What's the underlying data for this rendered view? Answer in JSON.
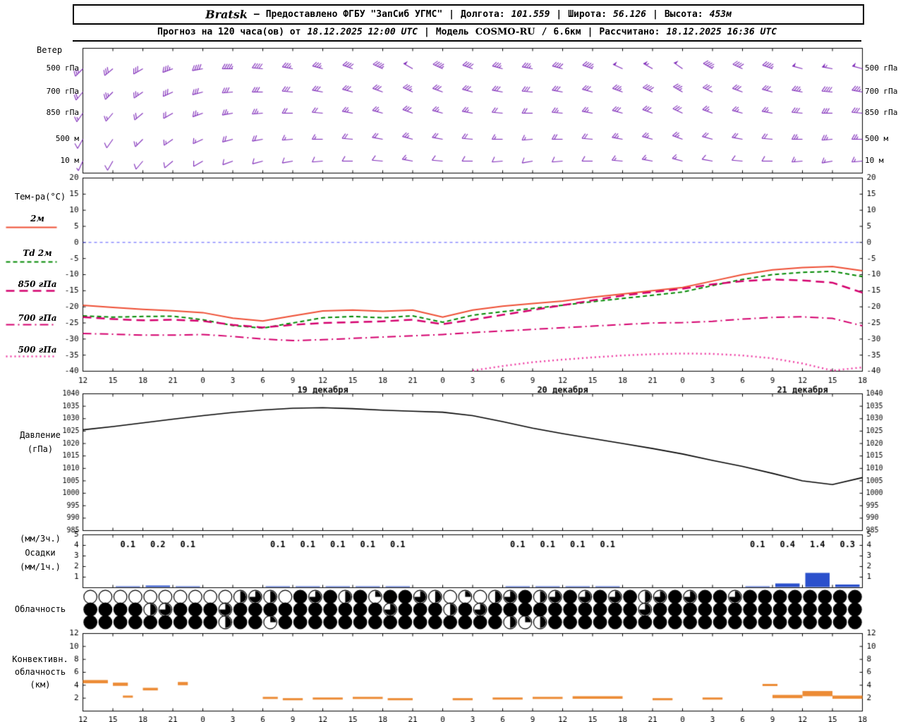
{
  "meta": {
    "sep": "|",
    "dash": "—",
    "slash": "/"
  },
  "header": {
    "station": "Bratsk",
    "provider": "Предоставлено ФГБУ \"ЗапСиб УГМС\"",
    "lon_label": "Долгота:",
    "lon": "101.559",
    "lat_label": "Широта:",
    "lat": "56.126",
    "alt_label": "Высота:",
    "alt": "453м",
    "forecast_label": "Прогноз на 120 часа(ов) от",
    "init_time": "18.12.2025 12:00 UTC",
    "model_label": "Модель",
    "model": "COSMO-RU",
    "model_res": "6.6км",
    "calc_label": "Рассчитано:",
    "calc_time": "18.12.2025 16:36 UTC"
  },
  "labels": {
    "wind_title": "Ветер",
    "wind_levels": [
      "500 гПа",
      "700 гПа",
      "850 гПа",
      "500 м",
      "10 м"
    ],
    "temp_title": "Тем-ра(°C)",
    "temp_legend": [
      "2м",
      "Td 2м",
      "850 гПа",
      "700 гПа",
      "500 гПа"
    ],
    "pressure_title": "Давление",
    "pressure_units": "(гПа)",
    "precip_rate3h": "(мм/3ч.)",
    "precip_title": "Осадки",
    "precip_rate1h": "(мм/1ч.)",
    "cloud_title": "Облачность",
    "conv_line1": "Конвективн.",
    "conv_line2": "облачность",
    "conv_units": "(км)"
  },
  "colors": {
    "wind_barb": "#7e2ab8",
    "temp_2m": "#ee4f35",
    "dewpoint": "#008800",
    "t850": "#d4006e",
    "t700": "#d4006e",
    "t500": "#ee3fa4",
    "pressure": "#000000",
    "precip": "#2b50cc",
    "convective": "#ec8b35",
    "zero_line": "#5050ff",
    "frame": "#000000"
  },
  "chart_data": {
    "type": "meteogram",
    "time": {
      "tick_hours": [
        "12",
        "15",
        "18",
        "21",
        "0",
        "3",
        "6",
        "9",
        "12",
        "15",
        "18",
        "21",
        "0",
        "3",
        "6",
        "9",
        "12",
        "15",
        "18",
        "21",
        "0",
        "3",
        "6",
        "9",
        "12",
        "15",
        "18"
      ],
      "date_labels": [
        {
          "text": "19 декабря",
          "tick": 8
        },
        {
          "text": "20 декабря",
          "tick": 16
        },
        {
          "text": "21 декабря",
          "tick": 24
        }
      ],
      "total_hours": 78
    },
    "wind": {
      "levels": [
        "500 гПа",
        "700 гПа",
        "850 гПа",
        "500 м",
        "10 м"
      ],
      "series": [
        {
          "level": "500 гПа",
          "dir": [
            225,
            230,
            240,
            250,
            260,
            270,
            275,
            280,
            285,
            290,
            295,
            300,
            295,
            290,
            285,
            280,
            285,
            290,
            295,
            300,
            305,
            300,
            295,
            290,
            285,
            280,
            285
          ],
          "speed": [
            12,
            14,
            15,
            18,
            20,
            22,
            20,
            18,
            18,
            20,
            22,
            25,
            22,
            20,
            18,
            18,
            20,
            22,
            25,
            27,
            25,
            22,
            20,
            22,
            25,
            27,
            25
          ]
        },
        {
          "level": "700 гПа",
          "dir": [
            220,
            225,
            235,
            245,
            255,
            265,
            270,
            275,
            280,
            285,
            290,
            295,
            290,
            285,
            280,
            275,
            280,
            285,
            290,
            295,
            300,
            295,
            290,
            285,
            280,
            275,
            280
          ],
          "speed": [
            10,
            12,
            12,
            14,
            15,
            16,
            15,
            14,
            14,
            15,
            16,
            18,
            16,
            15,
            14,
            14,
            15,
            16,
            18,
            20,
            18,
            16,
            15,
            16,
            18,
            20,
            18
          ]
        },
        {
          "level": "850 гПа",
          "dir": [
            215,
            220,
            230,
            240,
            250,
            260,
            265,
            270,
            275,
            280,
            285,
            290,
            285,
            280,
            275,
            270,
            275,
            280,
            285,
            290,
            295,
            290,
            285,
            280,
            275,
            270,
            275
          ],
          "speed": [
            8,
            8,
            10,
            10,
            12,
            12,
            12,
            10,
            10,
            12,
            12,
            14,
            12,
            12,
            10,
            10,
            12,
            12,
            14,
            15,
            14,
            12,
            12,
            12,
            14,
            15,
            14
          ]
        },
        {
          "level": "500 м",
          "dir": [
            210,
            215,
            225,
            235,
            245,
            255,
            260,
            265,
            270,
            275,
            280,
            285,
            280,
            275,
            270,
            265,
            270,
            275,
            280,
            285,
            290,
            285,
            280,
            275,
            270,
            265,
            270
          ],
          "speed": [
            6,
            6,
            8,
            8,
            8,
            10,
            10,
            8,
            8,
            10,
            10,
            12,
            10,
            10,
            8,
            8,
            10,
            10,
            12,
            12,
            12,
            10,
            10,
            10,
            12,
            12,
            12
          ]
        },
        {
          "level": "10 м",
          "dir": [
            205,
            210,
            220,
            230,
            240,
            250,
            255,
            260,
            265,
            270,
            275,
            280,
            275,
            270,
            265,
            260,
            265,
            270,
            275,
            280,
            285,
            280,
            275,
            270,
            265,
            260,
            265
          ],
          "speed": [
            3,
            4,
            4,
            5,
            5,
            6,
            6,
            5,
            5,
            6,
            6,
            8,
            6,
            6,
            5,
            5,
            6,
            6,
            8,
            8,
            8,
            6,
            6,
            6,
            8,
            8,
            8
          ]
        }
      ]
    },
    "temperature": {
      "ylim": [
        -40,
        20
      ],
      "ticks": [
        20,
        15,
        10,
        5,
        0,
        -5,
        -10,
        -15,
        -20,
        -25,
        -30,
        -35,
        -40
      ],
      "zero_line": 0,
      "series": [
        {
          "name": "2м",
          "style": "solid",
          "color": "#ee4f35",
          "values": [
            -19.5,
            -20.2,
            -20.8,
            -21.2,
            -21.8,
            -23.5,
            -24.4,
            -22.8,
            -21.3,
            -21.0,
            -21.4,
            -21.0,
            -23.2,
            -21.0,
            -19.8,
            -19.0,
            -18.2,
            -17.0,
            -16.0,
            -15.0,
            -14.0,
            -12.0,
            -10.0,
            -8.5,
            -7.8,
            -7.5,
            -8.8
          ]
        },
        {
          "name": "Td 2м",
          "style": "dashed",
          "color": "#008800",
          "values": [
            -22.8,
            -23.2,
            -23.0,
            -22.9,
            -24.0,
            -25.8,
            -26.6,
            -25.0,
            -23.4,
            -23.0,
            -23.4,
            -22.8,
            -24.8,
            -22.6,
            -21.5,
            -20.5,
            -19.5,
            -18.4,
            -17.4,
            -16.4,
            -15.4,
            -13.4,
            -11.5,
            -10.0,
            -9.3,
            -9.0,
            -10.6
          ]
        },
        {
          "name": "850 гПа",
          "style": "longdash",
          "color": "#d4006e",
          "values": [
            -23.2,
            -23.8,
            -24.2,
            -24.0,
            -24.4,
            -25.6,
            -26.4,
            -25.6,
            -25.0,
            -24.8,
            -24.5,
            -24.0,
            -25.4,
            -24.0,
            -22.5,
            -21.0,
            -19.5,
            -18.0,
            -16.5,
            -15.4,
            -14.4,
            -13.0,
            -12.0,
            -11.5,
            -11.8,
            -12.5,
            -15.6
          ]
        },
        {
          "name": "700 гПа",
          "style": "dashdot",
          "color": "#d4006e",
          "values": [
            -28.3,
            -28.5,
            -28.8,
            -28.8,
            -28.6,
            -29.2,
            -30.0,
            -30.5,
            -30.2,
            -29.8,
            -29.4,
            -29.0,
            -28.6,
            -28.0,
            -27.5,
            -27.0,
            -26.5,
            -26.0,
            -25.5,
            -25.0,
            -24.9,
            -24.5,
            -23.8,
            -23.3,
            -23.1,
            -23.6,
            -25.9
          ]
        },
        {
          "name": "500 гПа",
          "style": "dotted",
          "color": "#ee3fa4",
          "values": [
            null,
            null,
            null,
            null,
            null,
            null,
            null,
            null,
            null,
            null,
            null,
            null,
            null,
            -39.8,
            -38.4,
            -37.2,
            -36.4,
            -35.7,
            -35.1,
            -34.7,
            -34.5,
            -34.6,
            -35.1,
            -36.0,
            -37.6,
            -39.8,
            -38.8
          ]
        }
      ]
    },
    "pressure": {
      "ylim": [
        985,
        1040
      ],
      "ticks": [
        1040,
        1035,
        1030,
        1025,
        1020,
        1015,
        1010,
        1005,
        1000,
        995,
        990,
        985
      ],
      "values": [
        1025.5,
        1026.8,
        1028.3,
        1029.8,
        1031.2,
        1032.5,
        1033.5,
        1034.2,
        1034.4,
        1034.0,
        1033.4,
        1033.0,
        1032.6,
        1031.2,
        1028.8,
        1026.2,
        1024.0,
        1022.0,
        1020.0,
        1018.0,
        1015.8,
        1013.2,
        1010.8,
        1008.0,
        1005.0,
        1003.5,
        1006.3
      ]
    },
    "precipitation": {
      "ylim": [
        0,
        5
      ],
      "ticks": [
        5,
        4,
        3,
        2,
        1
      ],
      "per_3h": [
        0,
        0.1,
        0.2,
        0.1,
        0,
        0,
        0.1,
        0.1,
        0.1,
        0.1,
        0.1,
        0,
        0,
        0,
        0.1,
        0.1,
        0.1,
        0.1,
        0,
        0,
        0,
        0,
        0.1,
        0.4,
        1.4,
        0.3
      ]
    },
    "cloudiness": {
      "rows": [
        "0000000000232043424144320102342343434234344344444444",
        "4444234443444444444434442434444444444344444444444444",
        "4444444442441444444444444444212444444444444444444444"
      ],
      "quarters_scale": 4
    },
    "convective": {
      "ylim": [
        0,
        12
      ],
      "ticks": [
        12,
        10,
        8,
        6,
        4,
        2
      ],
      "segments": [
        [
          0,
          2.5,
          4.3,
          4.8
        ],
        [
          3,
          4.5,
          3.9,
          4.4
        ],
        [
          4,
          5,
          2.1,
          2.4
        ],
        [
          6,
          7.5,
          3.2,
          3.6
        ],
        [
          9.5,
          10.5,
          4.0,
          4.5
        ],
        [
          18,
          19.5,
          1.9,
          2.2
        ],
        [
          20,
          22,
          1.7,
          2.0
        ],
        [
          23,
          26,
          1.8,
          2.1
        ],
        [
          27,
          30,
          1.9,
          2.2
        ],
        [
          30.5,
          33,
          1.7,
          2.0
        ],
        [
          37,
          39,
          1.7,
          2.0
        ],
        [
          41,
          44,
          1.8,
          2.1
        ],
        [
          45,
          48,
          1.9,
          2.2
        ],
        [
          49,
          54,
          1.9,
          2.3
        ],
        [
          57,
          59,
          1.7,
          2.0
        ],
        [
          62,
          64,
          1.8,
          2.1
        ],
        [
          68,
          69.5,
          3.9,
          4.2
        ],
        [
          69,
          72,
          2.0,
          2.5
        ],
        [
          72,
          75,
          2.3,
          3.1
        ],
        [
          75,
          78,
          1.9,
          2.4
        ]
      ]
    }
  }
}
